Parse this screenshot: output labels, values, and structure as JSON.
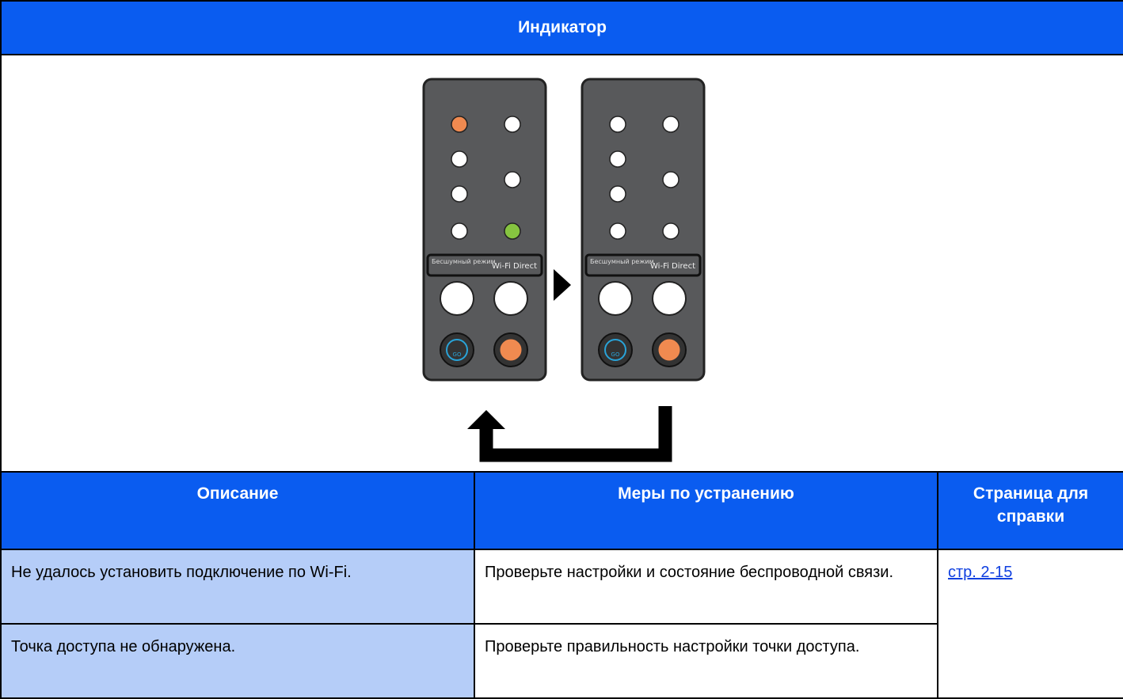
{
  "indicator": {
    "title": "Индикатор",
    "panels": [
      {
        "silent_label": "Бесшумный режим",
        "wifi_label": "Wi-Fi Direct",
        "go_label": "GO"
      },
      {
        "silent_label": "Бесшумный режим",
        "wifi_label": "Wi-Fi Direct",
        "go_label": "GO"
      }
    ]
  },
  "table": {
    "headers": [
      "Описание",
      "Меры по устранению",
      "Страница для справки"
    ],
    "rows": [
      [
        "Не удалось установить подключение по Wi-Fi.",
        "Проверьте настройки и состояние беспроводной связи.",
        "стр. 2-15"
      ],
      [
        "Точка доступа не обнаружена.",
        "Проверьте правильность настройки точки доступа."
      ]
    ]
  }
}
